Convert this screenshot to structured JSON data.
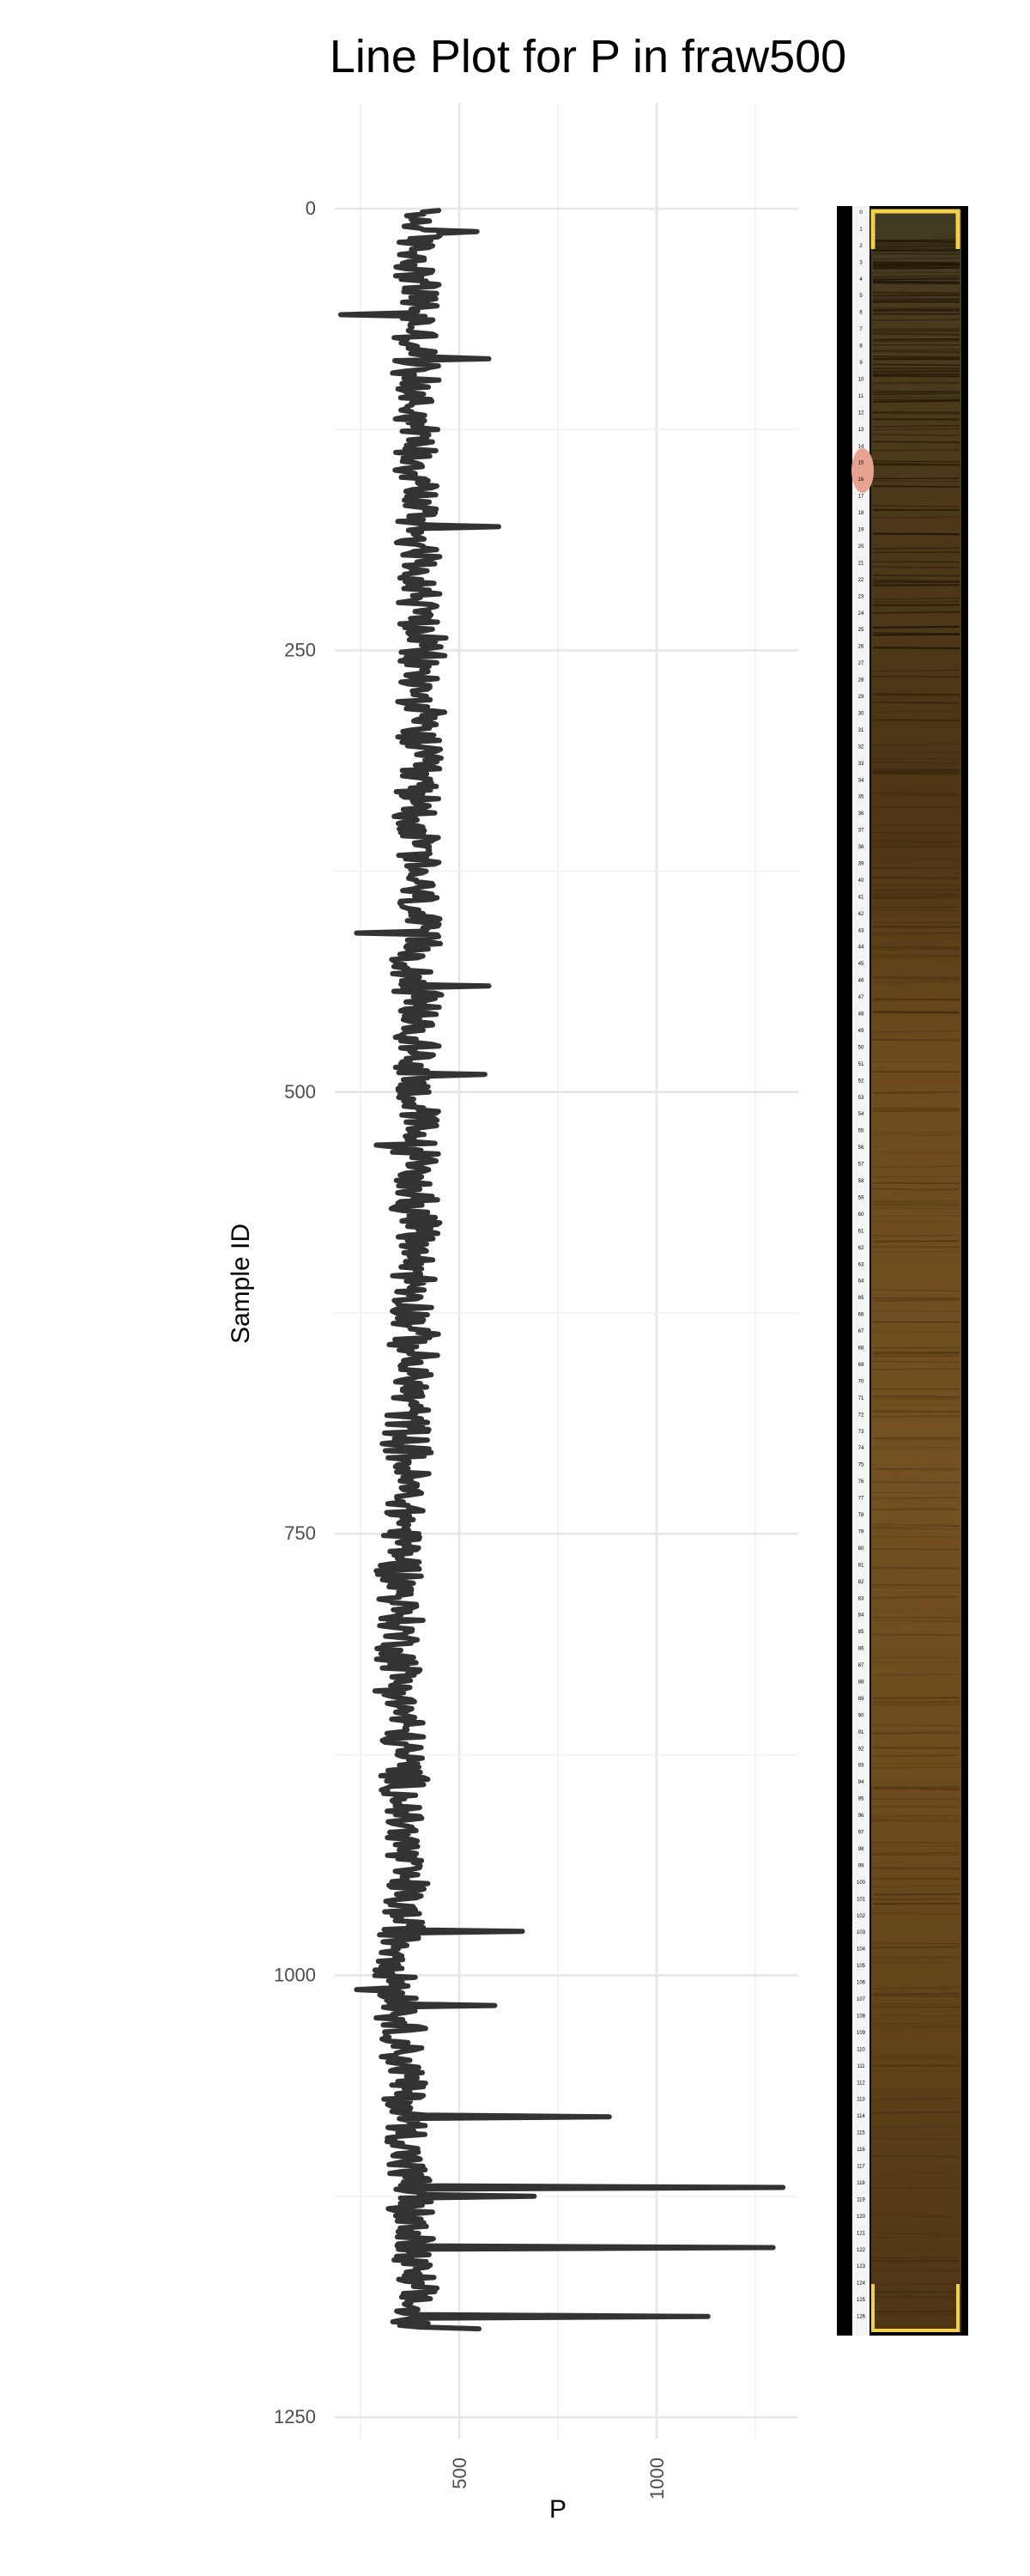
{
  "chart_data": {
    "type": "line",
    "title": "Line Plot for P in fraw500",
    "xlabel": "P",
    "ylabel": "Sample ID",
    "x_ticks": [
      500,
      1000
    ],
    "y_ticks": [
      0,
      250,
      500,
      750,
      1000,
      1250
    ],
    "x_tick_labels": [
      "500",
      "1000"
    ],
    "y_tick_labels": [
      "0",
      "250",
      "500",
      "750",
      "1000",
      "1250"
    ],
    "xlim": [
      220,
      1340
    ],
    "ylim": [
      0,
      1250
    ],
    "y_reversed": true,
    "grid": true,
    "orientation": "vertical",
    "series": [
      {
        "color": "#333333",
        "baseline_profile": [
          [
            0,
            400
          ],
          [
            100,
            390
          ],
          [
            150,
            400
          ],
          [
            250,
            400
          ],
          [
            400,
            390
          ],
          [
            600,
            390
          ],
          [
            700,
            370
          ],
          [
            800,
            350
          ],
          [
            900,
            360
          ],
          [
            950,
            360
          ],
          [
            1000,
            350
          ],
          [
            1100,
            370
          ],
          [
            1200,
            380
          ]
        ],
        "noise_amplitude": 70,
        "sample_count": 1200,
        "spikes": [
          [
            13,
            545
          ],
          [
            60,
            200
          ],
          [
            85,
            575
          ],
          [
            180,
            600
          ],
          [
            410,
            240
          ],
          [
            440,
            575
          ],
          [
            490,
            565
          ],
          [
            530,
            290
          ],
          [
            975,
            660
          ],
          [
            1008,
            240
          ],
          [
            1017,
            590
          ],
          [
            1080,
            880
          ],
          [
            1120,
            1320
          ],
          [
            1125,
            690
          ],
          [
            1154,
            1295
          ],
          [
            1193,
            1130
          ],
          [
            1200,
            550
          ]
        ]
      }
    ],
    "core_image": {
      "label_count": 127,
      "colors": {
        "frame": "#000000",
        "sediment": "#6e4b1e",
        "sediment_dark": "#4e3514",
        "border_highlight": "#f2d04a",
        "pink_clast": "#e7a38f"
      }
    }
  },
  "theme": {
    "background": "#ffffff",
    "gridline_major": "#e6e6e6",
    "gridline_minor": "#f2f2f2",
    "line_color": "#333333"
  }
}
